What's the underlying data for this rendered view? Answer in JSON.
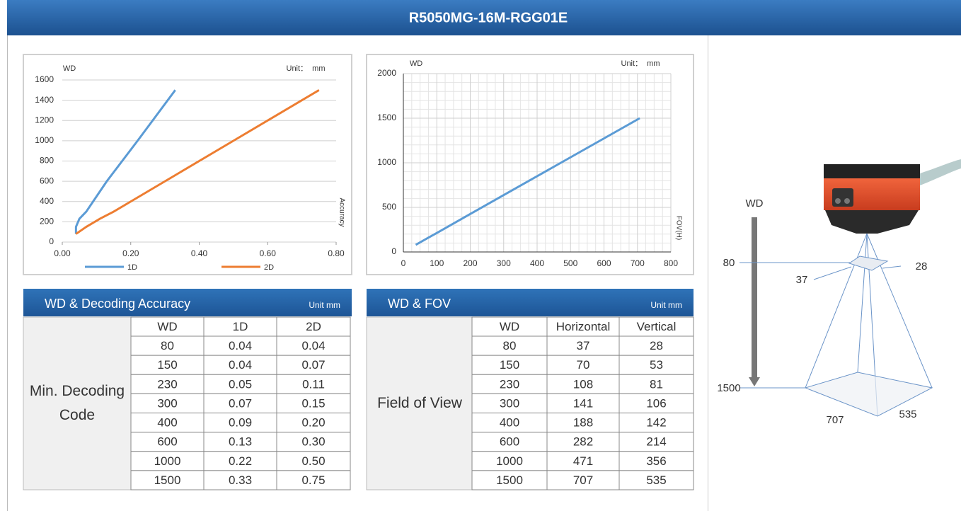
{
  "header": {
    "title": "R5050MG-16M-RGG01E"
  },
  "chart_data": [
    {
      "type": "line",
      "y_label": "WD",
      "unit_label": "Unit：  mm",
      "x_label": "Accuracy",
      "series": [
        {
          "name": "1D",
          "color": "#5b9bd5",
          "x": [
            0.04,
            0.04,
            0.05,
            0.07,
            0.09,
            0.13,
            0.22,
            0.33
          ],
          "values": [
            80,
            150,
            230,
            300,
            400,
            600,
            1000,
            1500
          ]
        },
        {
          "name": "2D",
          "color": "#ed7d31",
          "x": [
            0.04,
            0.07,
            0.11,
            0.15,
            0.2,
            0.3,
            0.5,
            0.75
          ],
          "values": [
            80,
            150,
            230,
            300,
            400,
            600,
            1000,
            1500
          ]
        }
      ],
      "xlim": [
        0,
        0.8
      ],
      "xticks": [
        {
          "value": 0,
          "label": "0.00"
        },
        {
          "value": 0.2,
          "label": "0.20"
        },
        {
          "value": 0.4,
          "label": "0.40"
        },
        {
          "value": 0.6,
          "label": "0.60"
        },
        {
          "value": 0.8,
          "label": "0.80"
        }
      ],
      "ylim": [
        0,
        1600
      ],
      "yticks": [
        0,
        200,
        400,
        600,
        800,
        1000,
        1200,
        1400,
        1600
      ],
      "grid": "horizontal",
      "legend": "bottom"
    },
    {
      "type": "line",
      "y_label": "WD",
      "unit_label": "Unit：  mm",
      "x_label": "FOV(H)",
      "series": [
        {
          "name": "FOV(H)",
          "color": "#5b9bd5",
          "x": [
            37,
            70,
            108,
            141,
            188,
            282,
            471,
            707
          ],
          "values": [
            80,
            150,
            230,
            300,
            400,
            600,
            1000,
            1500
          ]
        }
      ],
      "xlim": [
        0,
        800
      ],
      "xticks": [
        0,
        100,
        200,
        300,
        400,
        500,
        600,
        700,
        800
      ],
      "ylim": [
        0,
        2000
      ],
      "yticks": [
        0,
        500,
        1000,
        1500,
        2000
      ],
      "grid": "both",
      "minor_grid": true,
      "legend": "none"
    }
  ],
  "tables": [
    {
      "title": "WD & Decoding Accuracy",
      "unit": "Unit mm",
      "row_header": "Min. Decoding Code",
      "columns": [
        "WD",
        "1D",
        "2D"
      ],
      "rows": [
        [
          "80",
          "0.04",
          "0.04"
        ],
        [
          "150",
          "0.04",
          "0.07"
        ],
        [
          "230",
          "0.05",
          "0.11"
        ],
        [
          "300",
          "0.07",
          "0.15"
        ],
        [
          "400",
          "0.09",
          "0.20"
        ],
        [
          "600",
          "0.13",
          "0.30"
        ],
        [
          "1000",
          "0.22",
          "0.50"
        ],
        [
          "1500",
          "0.33",
          "0.75"
        ]
      ]
    },
    {
      "title": "WD & FOV",
      "unit": "Unit mm",
      "row_header": "Field of View",
      "columns": [
        "WD",
        "Horizontal",
        "Vertical"
      ],
      "rows": [
        [
          "80",
          "37",
          "28"
        ],
        [
          "150",
          "70",
          "53"
        ],
        [
          "230",
          "108",
          "81"
        ],
        [
          "300",
          "141",
          "106"
        ],
        [
          "400",
          "188",
          "142"
        ],
        [
          "600",
          "282",
          "214"
        ],
        [
          "1000",
          "471",
          "356"
        ],
        [
          "1500",
          "707",
          "535"
        ]
      ]
    }
  ],
  "diagram": {
    "wd_label": "WD",
    "near_wd": "80",
    "far_wd": "1500",
    "near_h": "37",
    "near_v": "28",
    "far_h": "707",
    "far_v": "535"
  }
}
